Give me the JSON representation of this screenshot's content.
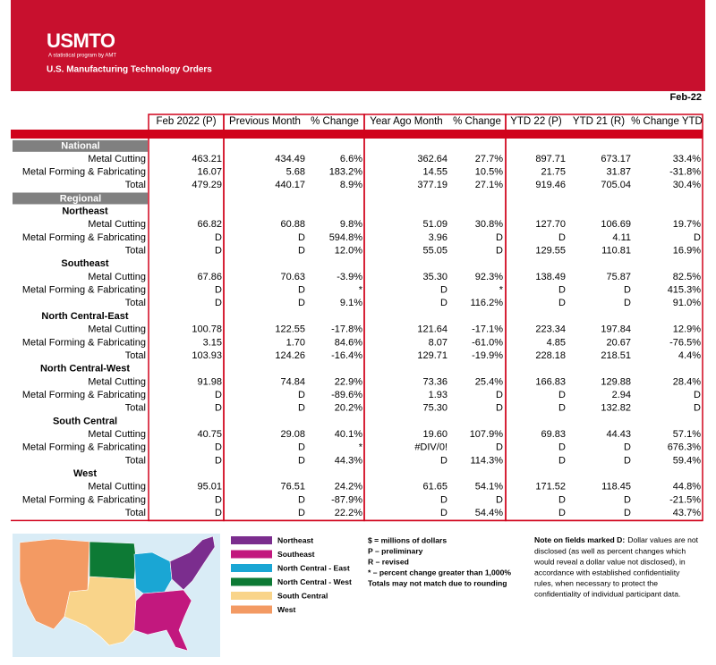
{
  "header": {
    "logo": "USMTO",
    "tagline": "A statistical program by AMT",
    "subtitle": "U.S. Manufacturing Technology Orders"
  },
  "date": "Feb-22",
  "table": {
    "columns": [
      "Feb 2022 (P)",
      "Previous Month",
      "% Change",
      "Year Ago Month",
      "% Change",
      "YTD 22 (P)",
      "YTD 21 (R)",
      "% Change YTD"
    ],
    "national": {
      "heading": "National",
      "rows": [
        {
          "label": "Metal Cutting",
          "cells": [
            "463.21",
            "434.49",
            "6.6%",
            "362.64",
            "27.7%",
            "897.71",
            "673.17",
            "33.4%"
          ]
        },
        {
          "label": "Metal Forming & Fabricating",
          "cells": [
            "16.07",
            "5.68",
            "183.2%",
            "14.55",
            "10.5%",
            "21.75",
            "31.87",
            "-31.8%"
          ]
        },
        {
          "label": "Total",
          "cells": [
            "479.29",
            "440.17",
            "8.9%",
            "377.19",
            "27.1%",
            "919.46",
            "705.04",
            "30.4%"
          ]
        }
      ]
    },
    "regional": {
      "heading": "Regional",
      "regions": [
        {
          "name": "Northeast",
          "rows": [
            {
              "label": "Metal Cutting",
              "cells": [
                "66.82",
                "60.88",
                "9.8%",
                "51.09",
                "30.8%",
                "127.70",
                "106.69",
                "19.7%"
              ]
            },
            {
              "label": "Metal Forming & Fabricating",
              "cells": [
                "D",
                "D",
                "594.8%",
                "3.96",
                "D",
                "D",
                "4.11",
                "D"
              ]
            },
            {
              "label": "Total",
              "cells": [
                "D",
                "D",
                "12.0%",
                "55.05",
                "D",
                "129.55",
                "110.81",
                "16.9%"
              ]
            }
          ]
        },
        {
          "name": "Southeast",
          "rows": [
            {
              "label": "Metal Cutting",
              "cells": [
                "67.86",
                "70.63",
                "-3.9%",
                "35.30",
                "92.3%",
                "138.49",
                "75.87",
                "82.5%"
              ]
            },
            {
              "label": "Metal Forming & Fabricating",
              "cells": [
                "D",
                "D",
                "*",
                "D",
                "*",
                "D",
                "D",
                "415.3%"
              ]
            },
            {
              "label": "Total",
              "cells": [
                "D",
                "D",
                "9.1%",
                "D",
                "116.2%",
                "D",
                "D",
                "91.0%"
              ]
            }
          ]
        },
        {
          "name": "North Central-East",
          "rows": [
            {
              "label": "Metal Cutting",
              "cells": [
                "100.78",
                "122.55",
                "-17.8%",
                "121.64",
                "-17.1%",
                "223.34",
                "197.84",
                "12.9%"
              ]
            },
            {
              "label": "Metal Forming & Fabricating",
              "cells": [
                "3.15",
                "1.70",
                "84.6%",
                "8.07",
                "-61.0%",
                "4.85",
                "20.67",
                "-76.5%"
              ]
            },
            {
              "label": "Total",
              "cells": [
                "103.93",
                "124.26",
                "-16.4%",
                "129.71",
                "-19.9%",
                "228.18",
                "218.51",
                "4.4%"
              ]
            }
          ]
        },
        {
          "name": "North Central-West",
          "rows": [
            {
              "label": "Metal Cutting",
              "cells": [
                "91.98",
                "74.84",
                "22.9%",
                "73.36",
                "25.4%",
                "166.83",
                "129.88",
                "28.4%"
              ]
            },
            {
              "label": "Metal Forming & Fabricating",
              "cells": [
                "D",
                "D",
                "-89.6%",
                "1.93",
                "D",
                "D",
                "2.94",
                "D"
              ]
            },
            {
              "label": "Total",
              "cells": [
                "D",
                "D",
                "20.2%",
                "75.30",
                "D",
                "D",
                "132.82",
                "D"
              ]
            }
          ]
        },
        {
          "name": "South Central",
          "rows": [
            {
              "label": "Metal Cutting",
              "cells": [
                "40.75",
                "29.08",
                "40.1%",
                "19.60",
                "107.9%",
                "69.83",
                "44.43",
                "57.1%"
              ]
            },
            {
              "label": "Metal Forming & Fabricating",
              "cells": [
                "D",
                "D",
                "*",
                "#DIV/0!",
                "D",
                "D",
                "D",
                "676.3%"
              ]
            },
            {
              "label": "Total",
              "cells": [
                "D",
                "D",
                "44.3%",
                "D",
                "114.3%",
                "D",
                "D",
                "59.4%"
              ]
            }
          ]
        },
        {
          "name": "West",
          "rows": [
            {
              "label": "Metal Cutting",
              "cells": [
                "95.01",
                "76.51",
                "24.2%",
                "61.65",
                "54.1%",
                "171.52",
                "118.45",
                "44.8%"
              ]
            },
            {
              "label": "Metal Forming & Fabricating",
              "cells": [
                "D",
                "D",
                "-87.9%",
                "D",
                "D",
                "D",
                "D",
                "-21.5%"
              ]
            },
            {
              "label": "Total",
              "cells": [
                "D",
                "D",
                "22.2%",
                "D",
                "54.4%",
                "D",
                "D",
                "43.7%"
              ]
            }
          ]
        }
      ]
    }
  },
  "legend": [
    {
      "label": "Northeast",
      "color": "#7b2d8e"
    },
    {
      "label": "Southeast",
      "color": "#c2187e"
    },
    {
      "label": "North Central - East",
      "color": "#1aa6d4"
    },
    {
      "label": "North Central - West",
      "color": "#0d7a35"
    },
    {
      "label": "South Central",
      "color": "#f9d48a"
    },
    {
      "label": "West",
      "color": "#f39a63"
    }
  ],
  "notes": [
    "$ = millions of dollars",
    "P – preliminary",
    "R – revised",
    "* – percent change greater than 1,000%",
    "Totals may not match due to rounding"
  ],
  "disclosure": {
    "title": "Note on fields marked D:",
    "lines": [
      "Dollar values are not",
      "disclosed (as well as percent changes which",
      "would reveal a dollar value not disclosed), in",
      "accordance with established confidentiality",
      "rules, when necessary to protect the",
      "confidentiality of individual participant data."
    ]
  }
}
